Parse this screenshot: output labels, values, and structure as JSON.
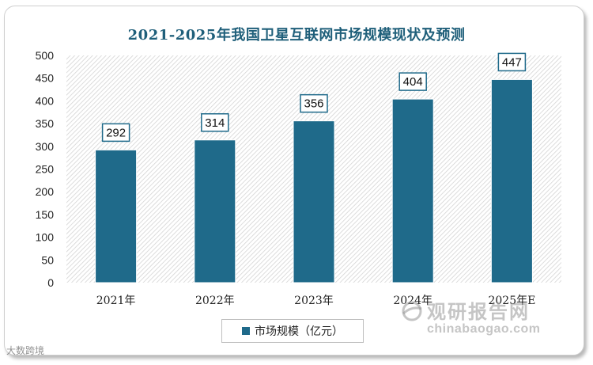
{
  "chart_data": {
    "type": "bar",
    "title": "2021-2025年我国卫星互联网市场规模现状及预测",
    "categories": [
      "2021年",
      "2022年",
      "2023年",
      "2024年",
      "2025年E"
    ],
    "series": [
      {
        "name": "市场规模（亿元）",
        "values": [
          292,
          314,
          356,
          404,
          447
        ]
      }
    ],
    "data_labels": [
      "292",
      "314",
      "356",
      "404",
      "447"
    ],
    "yticks": [
      "0",
      "50",
      "100",
      "150",
      "200",
      "250",
      "300",
      "350",
      "400",
      "450",
      "500"
    ],
    "ylim": [
      0,
      500
    ],
    "legend_position": "bottom",
    "bar_color": "#1f6a8a",
    "label_border_color": "#1f6a8a"
  },
  "watermark": {
    "text_cn": "观研报告网",
    "text_en": "chinabaogao.com",
    "corner_text": "大数跨境"
  }
}
